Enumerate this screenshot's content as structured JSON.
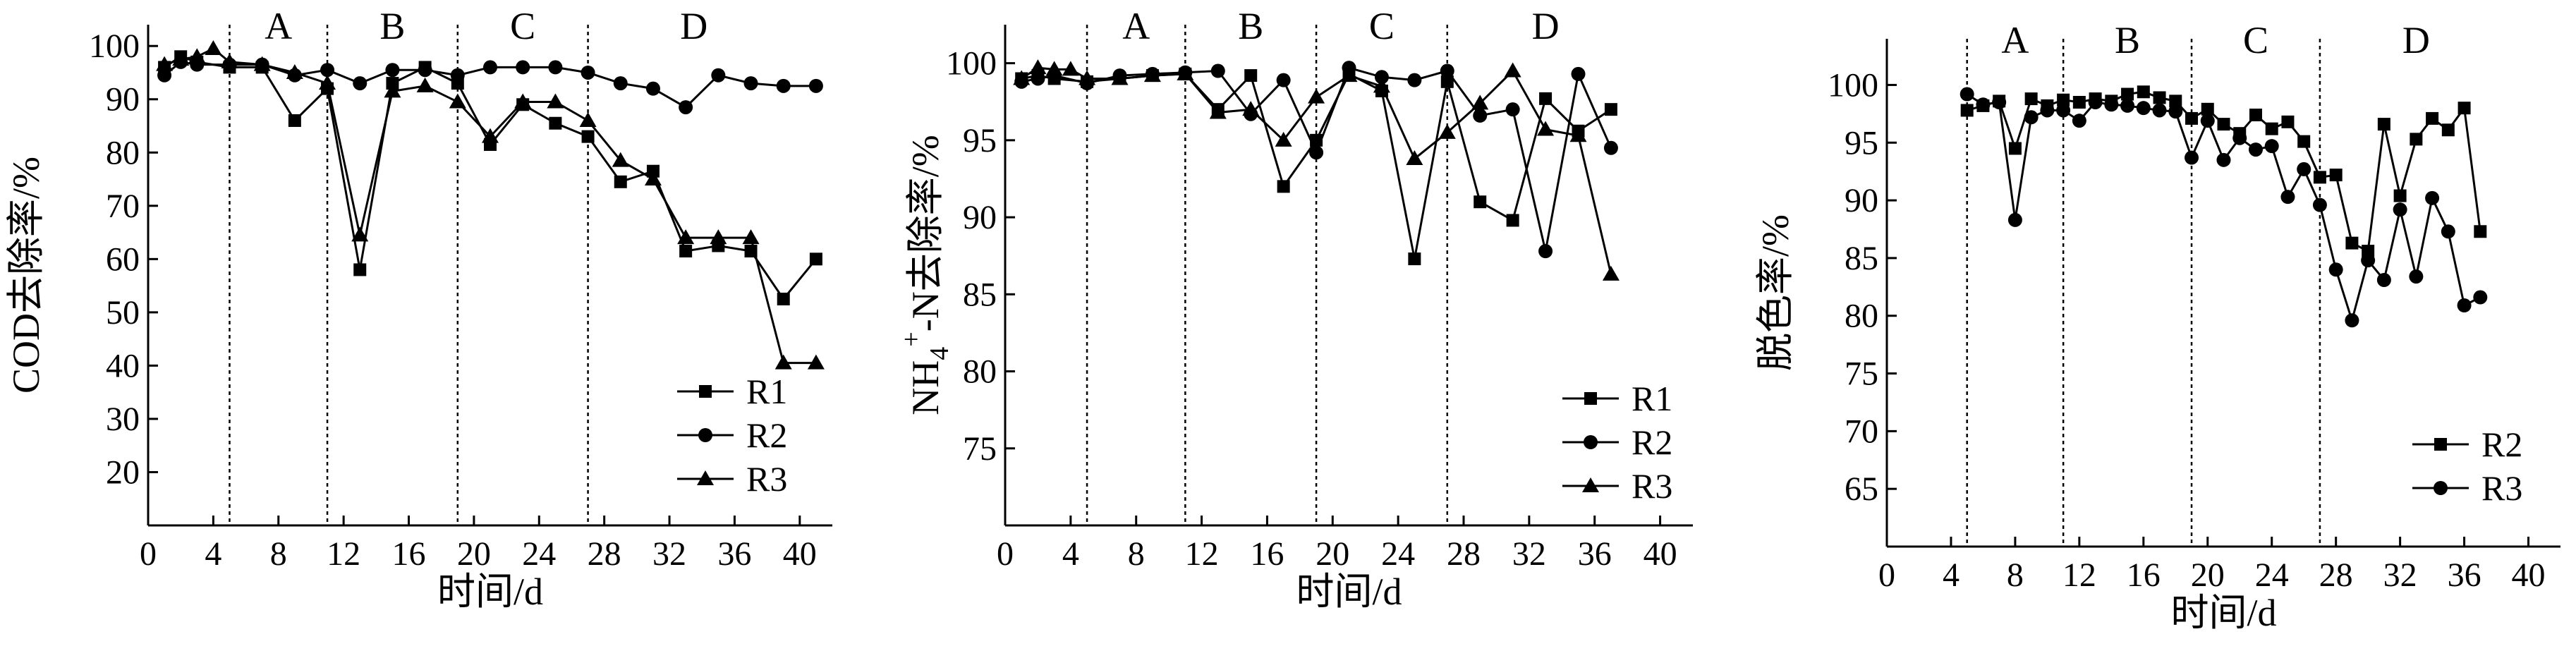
{
  "chart_data": [
    {
      "type": "line",
      "xlabel": "时间/d",
      "ylabel": "COD去除率/%",
      "xlim": [
        0,
        42
      ],
      "ylim": [
        10,
        104
      ],
      "xticks": [
        0,
        4,
        8,
        12,
        16,
        20,
        24,
        28,
        32,
        36,
        40
      ],
      "yticks": [
        20,
        30,
        40,
        50,
        60,
        70,
        80,
        90,
        100
      ],
      "phase_lines": [
        5,
        11,
        19,
        27
      ],
      "phases": [
        {
          "label": "A",
          "x": 8
        },
        {
          "label": "B",
          "x": 15
        },
        {
          "label": "C",
          "x": 23
        },
        {
          "label": "D",
          "x": 33.5
        }
      ],
      "legend": "bottom-right",
      "series": [
        {
          "name": "R1",
          "marker": "square",
          "x": [
            1,
            2,
            3,
            5,
            7,
            9,
            11,
            13,
            15,
            17,
            19,
            21,
            23,
            25,
            27,
            29,
            31,
            33,
            35,
            37,
            39,
            41
          ],
          "y": [
            96,
            98,
            97,
            96,
            96,
            86,
            92,
            58,
            93,
            96,
            93,
            81.5,
            89,
            85.5,
            83,
            74.5,
            76.5,
            61.5,
            62.5,
            61.5,
            52.5,
            60
          ]
        },
        {
          "name": "R2",
          "marker": "circle",
          "x": [
            1,
            2,
            3,
            5,
            7,
            9,
            11,
            13,
            15,
            17,
            19,
            21,
            23,
            25,
            27,
            29,
            31,
            33,
            35,
            37,
            39,
            41
          ],
          "y": [
            94.5,
            97,
            96.5,
            96.5,
            96.5,
            94.5,
            95.5,
            93,
            95.5,
            95.5,
            94.5,
            96,
            96,
            96,
            95,
            93,
            92,
            88.5,
            94.5,
            93,
            92.5,
            92.5
          ]
        },
        {
          "name": "R3",
          "marker": "triangle",
          "x": [
            1,
            2,
            3,
            4,
            5,
            7,
            9,
            11,
            13,
            15,
            17,
            19,
            21,
            23,
            25,
            27,
            29,
            31,
            33,
            35,
            37,
            39,
            41
          ],
          "y": [
            96.5,
            97.5,
            98,
            99.5,
            97,
            96.5,
            95,
            93,
            64.5,
            91.5,
            92.5,
            89.5,
            83,
            89.5,
            89.5,
            86,
            78.5,
            75,
            64,
            64,
            64,
            40.5,
            40.5
          ]
        }
      ]
    },
    {
      "type": "line",
      "xlabel": "时间/d",
      "ylabel_main": "NH",
      "ylabel_sub": "4",
      "ylabel_sup": "+",
      "ylabel_rest": "-N去除率/%",
      "xlim": [
        0,
        42
      ],
      "ylim": [
        70,
        102.5
      ],
      "xticks": [
        0,
        4,
        8,
        12,
        16,
        20,
        24,
        28,
        32,
        36,
        40
      ],
      "yticks": [
        75,
        80,
        85,
        90,
        95,
        100
      ],
      "phase_lines": [
        5,
        11,
        19,
        27
      ],
      "phases": [
        {
          "label": "A",
          "x": 8
        },
        {
          "label": "B",
          "x": 15
        },
        {
          "label": "C",
          "x": 23
        },
        {
          "label": "D",
          "x": 33
        }
      ],
      "legend": "bottom-right",
      "series": [
        {
          "name": "R1",
          "marker": "square",
          "x": [
            1,
            2,
            3,
            5,
            7,
            9,
            11,
            13,
            15,
            17,
            19,
            21,
            23,
            25,
            27,
            29,
            31,
            33,
            35,
            37
          ],
          "y": [
            99,
            99.2,
            99,
            98.8,
            99,
            99.2,
            99.3,
            97,
            99.2,
            92,
            95,
            99.3,
            98.2,
            87.3,
            98.8,
            91,
            89.8,
            97.7,
            95.6,
            97
          ]
        },
        {
          "name": "R2",
          "marker": "circle",
          "x": [
            1,
            2,
            3,
            5,
            7,
            9,
            11,
            13,
            15,
            17,
            19,
            21,
            23,
            25,
            27,
            29,
            31,
            33,
            35,
            37
          ],
          "y": [
            98.8,
            99,
            99.2,
            98.7,
            99.2,
            99.3,
            99.4,
            99.5,
            96.7,
            98.9,
            94.2,
            99.7,
            99.1,
            98.9,
            99.5,
            96.6,
            97,
            87.8,
            99.3,
            94.5
          ]
        },
        {
          "name": "R3",
          "marker": "triangle",
          "x": [
            1,
            2,
            3,
            4,
            5,
            7,
            9,
            11,
            13,
            15,
            17,
            19,
            21,
            23,
            25,
            27,
            29,
            31,
            33,
            35,
            37
          ],
          "y": [
            99,
            99.7,
            99.6,
            99.6,
            99,
            99,
            99.2,
            99.3,
            96.8,
            97,
            95,
            97.8,
            99.2,
            98.5,
            93.8,
            95.5,
            97.4,
            99.5,
            95.7,
            95.3,
            86.3
          ]
        }
      ]
    },
    {
      "type": "line",
      "xlabel": "时间/d",
      "ylabel": "脱色率/%",
      "xlim": [
        0,
        42
      ],
      "ylim": [
        60,
        104
      ],
      "xticks": [
        0,
        4,
        8,
        12,
        16,
        20,
        24,
        28,
        32,
        36,
        40
      ],
      "yticks": [
        65,
        70,
        75,
        80,
        85,
        90,
        95,
        100
      ],
      "phase_lines": [
        5,
        11,
        19,
        27
      ],
      "phases": [
        {
          "label": "A",
          "x": 8
        },
        {
          "label": "B",
          "x": 15
        },
        {
          "label": "C",
          "x": 23
        },
        {
          "label": "D",
          "x": 33
        }
      ],
      "legend": "bottom-right",
      "series": [
        {
          "name": "R2",
          "marker": "square",
          "x": [
            5,
            6,
            7,
            8,
            9,
            10,
            11,
            12,
            13,
            14,
            15,
            16,
            17,
            18,
            19,
            20,
            21,
            22,
            23,
            24,
            25,
            26,
            27,
            28,
            29,
            30,
            31,
            32,
            33,
            34,
            35,
            36,
            37
          ],
          "y": [
            97.8,
            98.2,
            98.6,
            94.5,
            98.8,
            98.2,
            98.7,
            98.5,
            98.8,
            98.6,
            99.2,
            99.4,
            98.9,
            98.6,
            97.1,
            97.9,
            96.6,
            95.8,
            97.4,
            96.2,
            96.8,
            95.1,
            92,
            92.2,
            86.3,
            85.6,
            96.6,
            90.4,
            95.3,
            97.1,
            96.1,
            98,
            87.3
          ]
        },
        {
          "name": "R3",
          "marker": "circle",
          "x": [
            5,
            6,
            7,
            8,
            9,
            10,
            11,
            12,
            13,
            14,
            15,
            16,
            17,
            18,
            19,
            20,
            21,
            22,
            23,
            24,
            25,
            26,
            27,
            28,
            29,
            30,
            31,
            32,
            33,
            34,
            35,
            36,
            37
          ],
          "y": [
            99.2,
            98.3,
            98.5,
            88.3,
            97.2,
            97.8,
            97.8,
            96.9,
            98.5,
            98.3,
            98.2,
            98,
            97.8,
            97.7,
            93.7,
            96.9,
            93.5,
            95.4,
            94.4,
            94.7,
            90.3,
            92.7,
            89.6,
            84,
            79.6,
            84.8,
            83.1,
            89.2,
            83.4,
            90.2,
            87.3,
            80.9,
            81.6
          ]
        }
      ]
    }
  ]
}
